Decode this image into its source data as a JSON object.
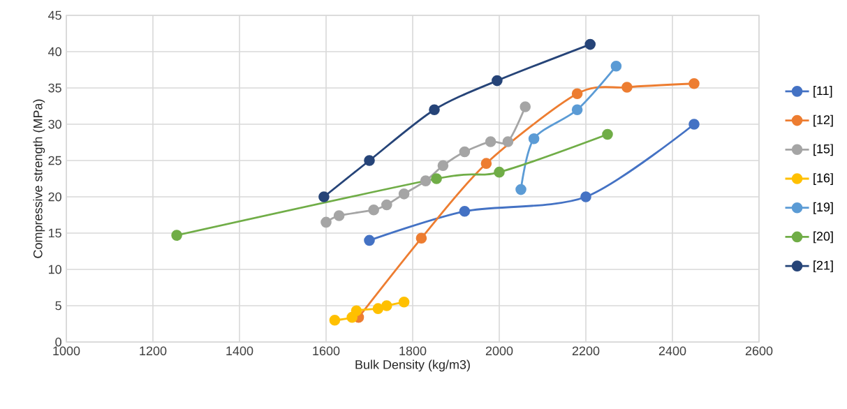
{
  "chart_data": {
    "type": "line",
    "xlabel": "Bulk Density (kg/m3)",
    "ylabel": "Compressive strength (MPa)",
    "xlim": [
      1000,
      2600
    ],
    "xticks": [
      1000,
      1200,
      1400,
      1600,
      1800,
      2000,
      2200,
      2400,
      2600
    ],
    "ylim": [
      0,
      45
    ],
    "yticks": [
      0,
      5,
      10,
      15,
      20,
      25,
      30,
      35,
      40,
      45
    ],
    "grid": true,
    "legend": "right",
    "marker": "circle",
    "line_style": "solid",
    "series": [
      {
        "name": "[11]",
        "color": "#4472c4",
        "x": [
          1700,
          1920,
          2200,
          2450
        ],
        "values": [
          14,
          18,
          20,
          30
        ]
      },
      {
        "name": "[12]",
        "color": "#ed7d31",
        "x": [
          1675,
          1820,
          1970,
          2180,
          2295,
          2450
        ],
        "values": [
          3.4,
          14.3,
          24.6,
          34.2,
          35.1,
          35.6
        ]
      },
      {
        "name": "[15]",
        "color": "#a5a5a5",
        "x": [
          1600,
          1630,
          1710,
          1740,
          1780,
          1830,
          1870,
          1920,
          1980,
          2020,
          2060
        ],
        "values": [
          16.5,
          17.4,
          18.2,
          18.9,
          20.4,
          22.2,
          24.3,
          26.2,
          27.6,
          27.6,
          32.4
        ]
      },
      {
        "name": "[16]",
        "color": "#ffc000",
        "x": [
          1620,
          1660,
          1670,
          1720,
          1740,
          1780
        ],
        "values": [
          3,
          3.4,
          4.3,
          4.6,
          5,
          5.5
        ]
      },
      {
        "name": "[19]",
        "color": "#5b9bd5",
        "x": [
          2050,
          2080,
          2180,
          2270
        ],
        "values": [
          21,
          28,
          32,
          38
        ]
      },
      {
        "name": "[20]",
        "color": "#70ad47",
        "x": [
          1255,
          1855,
          2000,
          2250
        ],
        "values": [
          14.7,
          22.5,
          23.4,
          28.6
        ]
      },
      {
        "name": "[21]",
        "color": "#264478",
        "x": [
          1595,
          1700,
          1850,
          1995,
          2210
        ],
        "values": [
          20,
          25,
          32,
          36,
          41
        ]
      }
    ]
  }
}
